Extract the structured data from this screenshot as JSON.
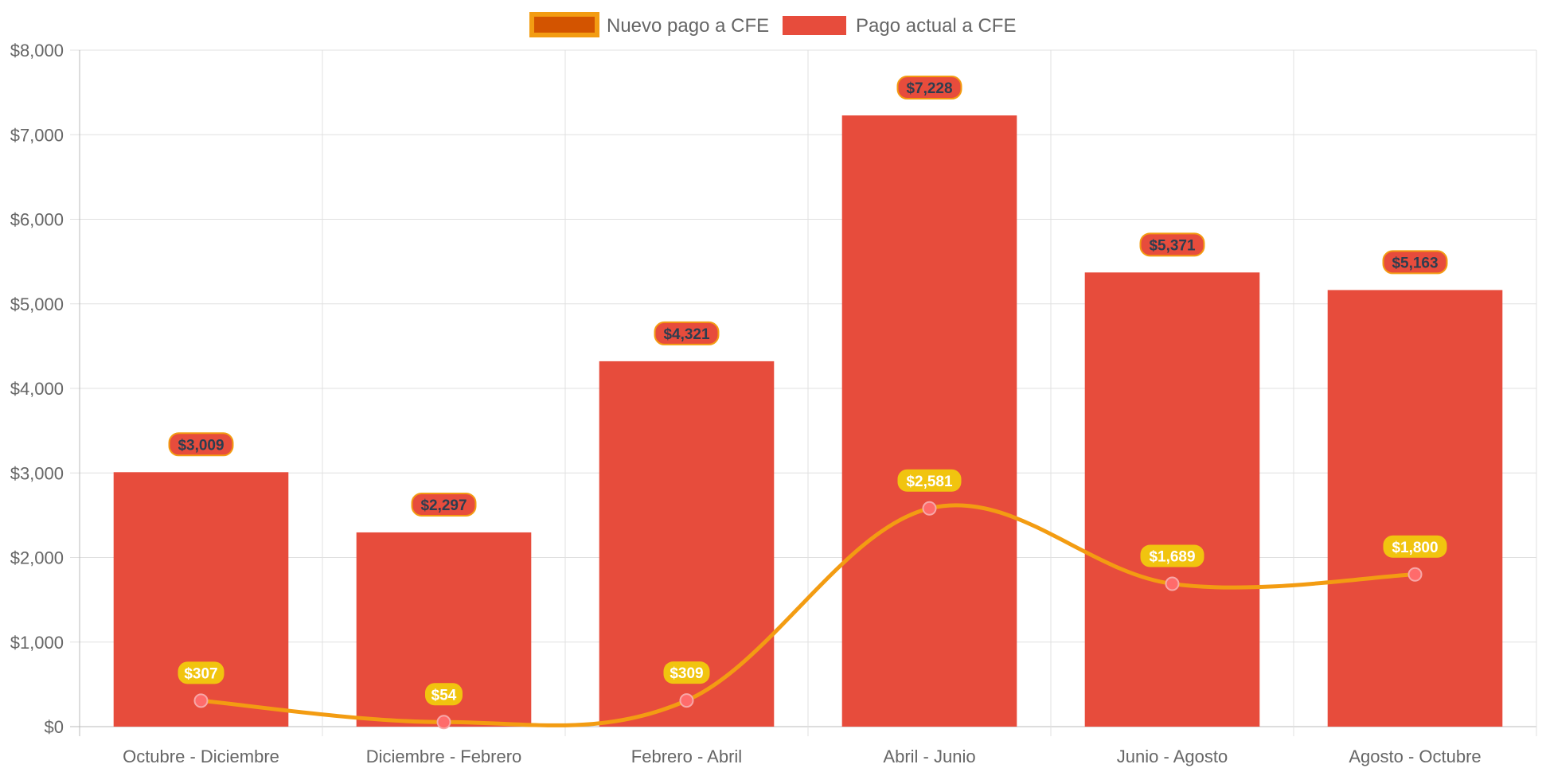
{
  "chart_data": {
    "type": "bar",
    "categories": [
      "Octubre - Diciembre",
      "Diciembre - Febrero",
      "Febrero - Abril",
      "Abril - Junio",
      "Junio - Agosto",
      "Agosto - Octubre"
    ],
    "series": [
      {
        "name": "Nuevo pago a CFE",
        "type": "line",
        "values": [
          307,
          54,
          309,
          2581,
          1689,
          1800
        ],
        "labels": [
          "$307",
          "$54",
          "$309",
          "$2,581",
          "$1,689",
          "$1,800"
        ],
        "color": "#f39c12",
        "legend_fill": "#d35400",
        "point_color": "#ff6b6b",
        "label_bg": "#f1c40f",
        "label_text_color": "#ffffff"
      },
      {
        "name": "Pago actual a CFE",
        "type": "bar",
        "values": [
          3009,
          2297,
          4321,
          7228,
          5371,
          5163
        ],
        "labels": [
          "$3,009",
          "$2,297",
          "$4,321",
          "$7,228",
          "$5,371",
          "$5,163"
        ],
        "color": "#e74c3c",
        "label_bg": "#e74c3c",
        "label_border": "#f39c12",
        "label_text_color": "#2c3e50"
      }
    ],
    "ylim": [
      0,
      8000
    ],
    "yticks": [
      0,
      1000,
      2000,
      3000,
      4000,
      5000,
      6000,
      7000,
      8000
    ],
    "ytick_labels": [
      "$0",
      "$1,000",
      "$2,000",
      "$3,000",
      "$4,000",
      "$5,000",
      "$6,000",
      "$7,000",
      "$8,000"
    ],
    "grid": true,
    "legend_position": "top-center",
    "title": "",
    "xlabel": "",
    "ylabel": ""
  }
}
